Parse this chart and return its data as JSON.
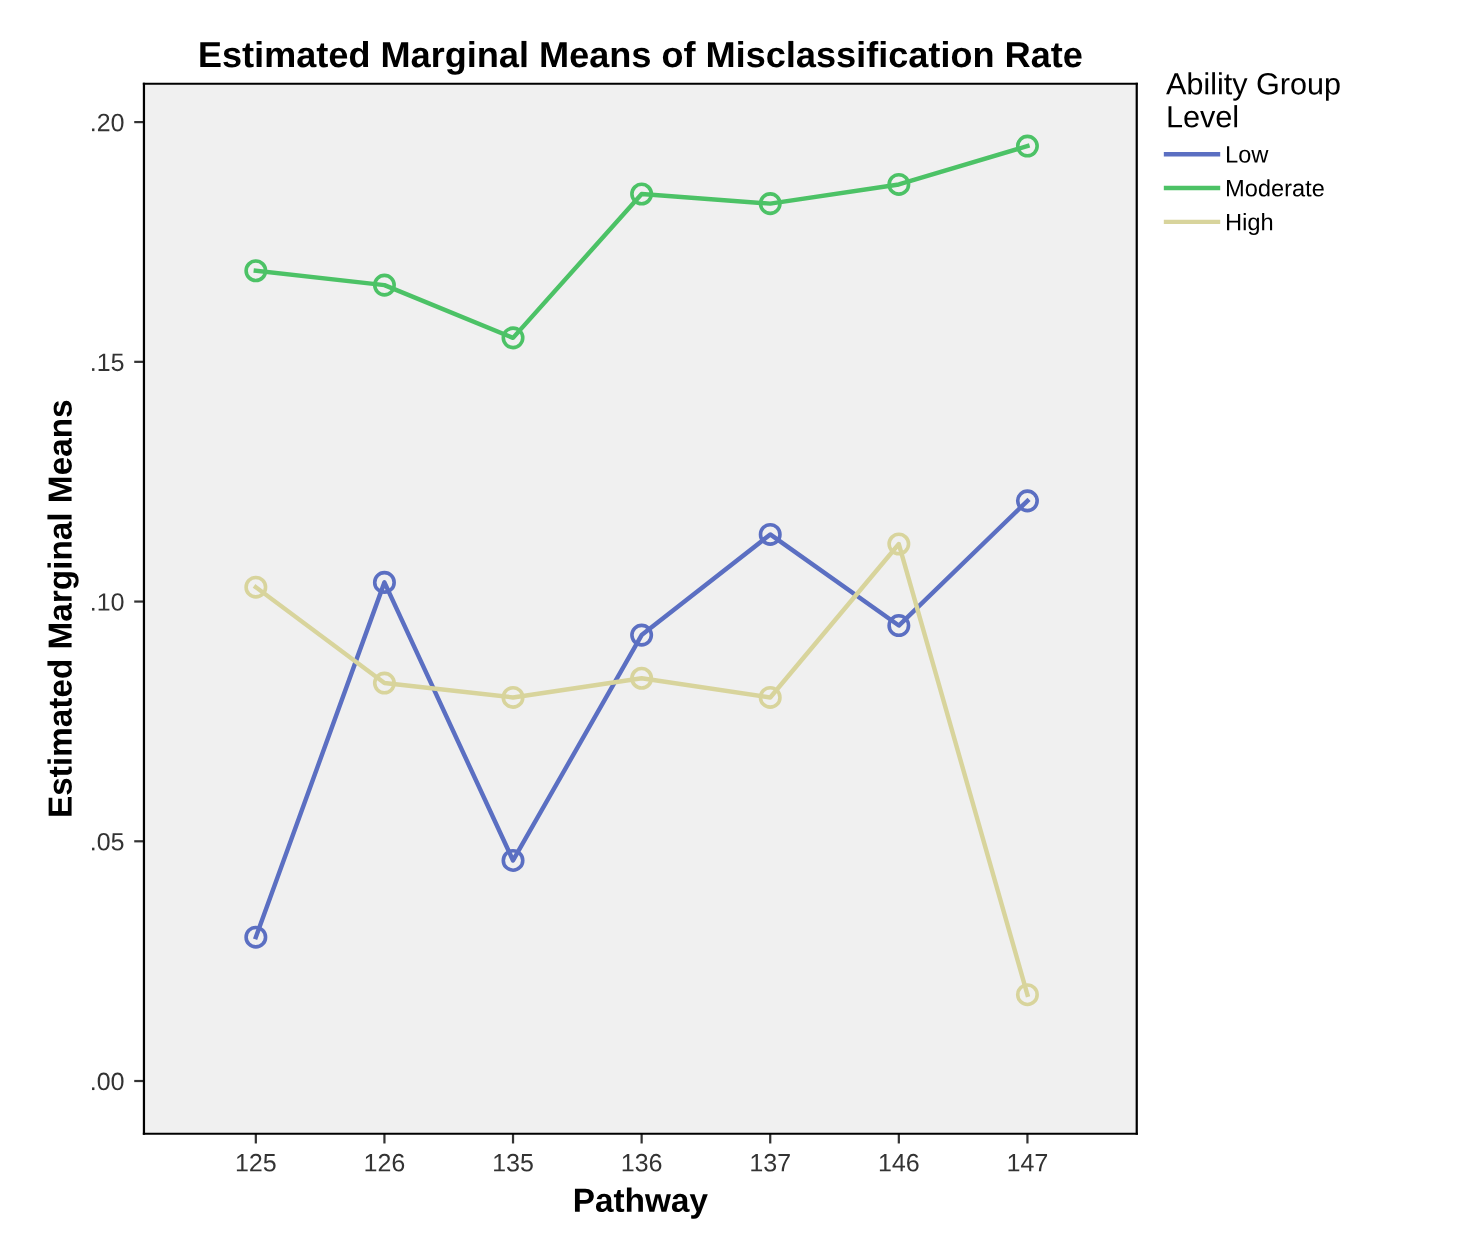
{
  "chart_data": {
    "type": "line",
    "title": "Estimated Marginal Means of Misclassification Rate",
    "xlabel": "Pathway",
    "ylabel": "Estimated Marginal Means",
    "legend_title": "Ability Group\nLevel",
    "categories": [
      "125",
      "126",
      "135",
      "136",
      "137",
      "146",
      "147"
    ],
    "series": [
      {
        "name": "Low",
        "color": "#5b6fc2",
        "values": [
          0.03,
          0.104,
          0.046,
          0.093,
          0.114,
          0.095,
          0.121
        ]
      },
      {
        "name": "Moderate",
        "color": "#4cc266",
        "values": [
          0.169,
          0.166,
          0.155,
          0.185,
          0.183,
          0.187,
          0.195
        ]
      },
      {
        "name": "High",
        "color": "#d8d49c",
        "values": [
          0.103,
          0.083,
          0.08,
          0.084,
          0.08,
          0.112,
          0.018
        ]
      }
    ],
    "ylim": [
      -0.011,
      0.208
    ],
    "yticks": [
      {
        "value": 0,
        "label": ".00"
      },
      {
        "value": 0.05,
        "label": ".05"
      },
      {
        "value": 0.1,
        "label": ".10"
      },
      {
        "value": 0.15,
        "label": ".15"
      },
      {
        "value": 0.2,
        "label": ".20"
      }
    ],
    "grid": false,
    "legend": "top right",
    "marker": "circle",
    "line_style": "solid"
  }
}
